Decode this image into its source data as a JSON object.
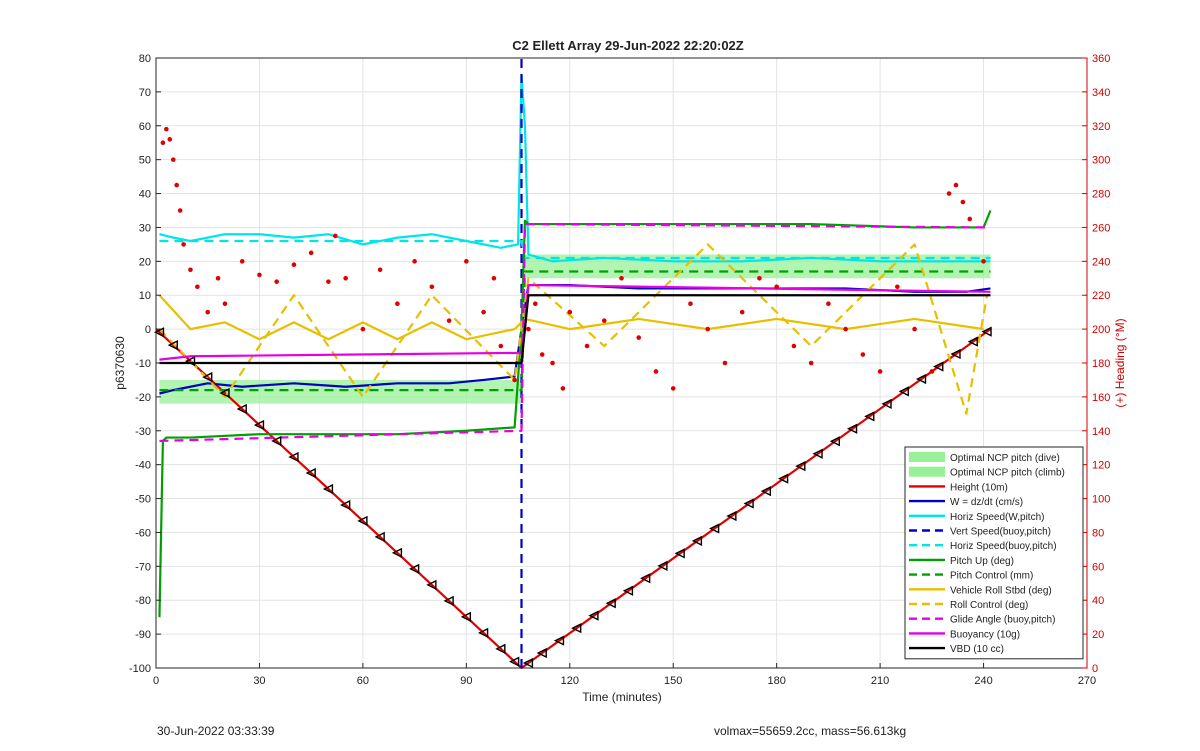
{
  "chart_data": {
    "type": "line",
    "title": "C2 Ellett Array 29-Jun-2022 22:20:02Z",
    "xlabel": "Time (minutes)",
    "ylabel": "p6370630",
    "ylabel_right": "(+) Heading (°M)",
    "xlim": [
      0,
      270
    ],
    "ylim": [
      -100,
      80
    ],
    "ylim_right": [
      0,
      360
    ],
    "xticks": [
      0,
      30,
      60,
      90,
      120,
      150,
      180,
      210,
      240,
      270
    ],
    "yticks": [
      -100,
      -90,
      -80,
      -70,
      -60,
      -50,
      -40,
      -30,
      -20,
      -10,
      0,
      10,
      20,
      30,
      40,
      50,
      60,
      70,
      80
    ],
    "yticks_right": [
      0,
      20,
      40,
      60,
      80,
      100,
      120,
      140,
      160,
      180,
      200,
      220,
      240,
      260,
      280,
      300,
      320,
      340,
      360
    ],
    "grid": true,
    "legend_position": "bottom-right",
    "colors": {
      "height": "#e00000",
      "w": "#0000c0",
      "horiz_speed": "#00e5e5",
      "vert_speed_buoy": "#0000cc",
      "horiz_speed_buoy": "#00e5e5",
      "pitch_up": "#00a000",
      "pitch_control": "#00a000",
      "roll": "#e6c000",
      "roll_control": "#e6c000",
      "glide_angle": "#e600e6",
      "buoyancy": "#e600e6",
      "vbd": "#000000",
      "ncp_band": "#98f098",
      "heading": "#e00000"
    },
    "series": [
      {
        "name": "Optimal NCP pitch (dive)",
        "style": "band",
        "key": "ncp_band",
        "x": [
          1,
          106
        ],
        "lower": [
          -22,
          -22
        ],
        "upper": [
          -15,
          -15
        ]
      },
      {
        "name": "Optimal NCP pitch (climb)",
        "style": "band",
        "key": "ncp_band",
        "x": [
          107,
          242
        ],
        "lower": [
          15,
          15
        ],
        "upper": [
          22,
          22
        ]
      },
      {
        "name": "Height (10m)",
        "style": "solid",
        "key": "height",
        "x": [
          0,
          106,
          242
        ],
        "y": [
          0,
          -100,
          0
        ]
      },
      {
        "name": "W = dz/dt (cm/s)",
        "style": "solid",
        "key": "w",
        "x": [
          1,
          5,
          15,
          25,
          40,
          55,
          70,
          85,
          95,
          104,
          106,
          108,
          120,
          140,
          160,
          180,
          200,
          220,
          235,
          242
        ],
        "y": [
          -19,
          -18,
          -16,
          -17,
          -16,
          -17,
          -16,
          -16,
          -15,
          -14,
          0,
          13,
          13,
          12,
          12,
          12,
          12,
          11,
          11,
          12
        ]
      },
      {
        "name": "Horiz Speed(W,pitch)",
        "style": "solid",
        "key": "horiz_speed",
        "x": [
          1,
          5,
          10,
          20,
          30,
          40,
          50,
          60,
          70,
          80,
          90,
          100,
          105,
          106,
          107,
          108,
          115,
          130,
          150,
          170,
          190,
          210,
          230,
          242
        ],
        "y": [
          28,
          27,
          26,
          28,
          28,
          27,
          28,
          25,
          27,
          28,
          26,
          24,
          25,
          75,
          60,
          22,
          20,
          21,
          20,
          20,
          21,
          20,
          20,
          20
        ]
      },
      {
        "name": "Vert Speed(buoy,pitch)",
        "style": "dashed",
        "key": "vert_speed_buoy",
        "x": [
          106,
          106
        ],
        "y": [
          -100,
          80
        ]
      },
      {
        "name": "Horiz Speed(buoy,pitch)",
        "style": "dashed",
        "key": "horiz_speed_buoy",
        "x": [
          1,
          106,
          107,
          242
        ],
        "y": [
          26,
          26,
          21,
          21
        ]
      },
      {
        "name": "Pitch Up (deg)",
        "style": "solid",
        "key": "pitch_up",
        "x": [
          1,
          2,
          3,
          10,
          30,
          50,
          70,
          90,
          104,
          106,
          107,
          108,
          130,
          160,
          190,
          220,
          240,
          242
        ],
        "y": [
          -85,
          -33,
          -32,
          -32,
          -31,
          -31,
          -31,
          -30,
          -29,
          0,
          32,
          31,
          31,
          31,
          31,
          30,
          30,
          35
        ]
      },
      {
        "name": "Pitch Control (mm)",
        "style": "dashed",
        "key": "pitch_control",
        "x": [
          1,
          106,
          107,
          242
        ],
        "y": [
          -18,
          -18,
          17,
          17
        ]
      },
      {
        "name": "Vehicle Roll Stbd (deg)",
        "style": "solid",
        "key": "roll",
        "x": [
          1,
          10,
          20,
          30,
          40,
          50,
          60,
          70,
          80,
          90,
          104,
          107,
          120,
          140,
          160,
          180,
          200,
          220,
          240
        ],
        "y": [
          10,
          0,
          2,
          -3,
          2,
          -3,
          2,
          -3,
          2,
          -3,
          0,
          3,
          0,
          3,
          0,
          3,
          0,
          3,
          0
        ]
      },
      {
        "name": "Roll Control (deg)",
        "style": "dashed",
        "key": "roll_control",
        "x": [
          1,
          20,
          40,
          60,
          80,
          104,
          108,
          130,
          160,
          190,
          220,
          235,
          241
        ],
        "y": [
          0,
          -20,
          10,
          -20,
          10,
          -15,
          15,
          -5,
          25,
          -5,
          25,
          -25,
          10
        ]
      },
      {
        "name": "Glide Angle (buoy,pitch)",
        "style": "dashed",
        "key": "glide_angle",
        "x": [
          1,
          106,
          107,
          242
        ],
        "y": [
          -33,
          -30,
          31,
          30
        ]
      },
      {
        "name": "Buoyancy (10g)",
        "style": "solid",
        "key": "buoyancy",
        "x": [
          1,
          10,
          106,
          107,
          108,
          242
        ],
        "y": [
          -9,
          -8,
          -7,
          0,
          13,
          11
        ]
      },
      {
        "name": "VBD (10 cc)",
        "style": "solid",
        "key": "vbd",
        "x": [
          1,
          106,
          107,
          108,
          242
        ],
        "y": [
          -10,
          -10,
          0,
          10,
          10
        ]
      }
    ],
    "heading_points": {
      "axis": "right",
      "x": [
        2,
        3,
        4,
        5,
        6,
        7,
        8,
        10,
        12,
        15,
        18,
        20,
        25,
        30,
        35,
        40,
        45,
        50,
        52,
        55,
        60,
        65,
        70,
        75,
        80,
        85,
        90,
        95,
        98,
        100,
        104,
        108,
        110,
        112,
        115,
        118,
        120,
        125,
        130,
        135,
        140,
        145,
        150,
        155,
        160,
        165,
        170,
        175,
        180,
        185,
        190,
        195,
        200,
        205,
        210,
        215,
        220,
        225,
        230,
        232,
        234,
        236,
        240
      ],
      "y": [
        310,
        318,
        312,
        300,
        285,
        270,
        250,
        235,
        225,
        210,
        230,
        215,
        240,
        232,
        228,
        238,
        245,
        228,
        255,
        230,
        200,
        235,
        215,
        240,
        225,
        205,
        240,
        210,
        230,
        190,
        170,
        200,
        215,
        185,
        180,
        165,
        210,
        190,
        205,
        230,
        195,
        175,
        165,
        215,
        200,
        180,
        210,
        230,
        225,
        190,
        180,
        215,
        200,
        185,
        175,
        225,
        200,
        175,
        280,
        285,
        275,
        265,
        240
      ]
    },
    "height_markers": {
      "x": [
        1,
        5,
        10,
        15,
        20,
        25,
        30,
        35,
        40,
        45,
        50,
        55,
        60,
        65,
        70,
        75,
        80,
        85,
        90,
        95,
        100,
        104,
        108,
        112,
        117,
        122,
        127,
        132,
        137,
        142,
        147,
        152,
        157,
        162,
        167,
        172,
        177,
        182,
        187,
        192,
        197,
        202,
        207,
        212,
        217,
        222,
        227,
        232,
        237,
        241
      ]
    }
  },
  "footer": {
    "timestamp": "30-Jun-2022 03:33:39",
    "volmax": "volmax=55659.2cc, mass=56.613kg"
  }
}
